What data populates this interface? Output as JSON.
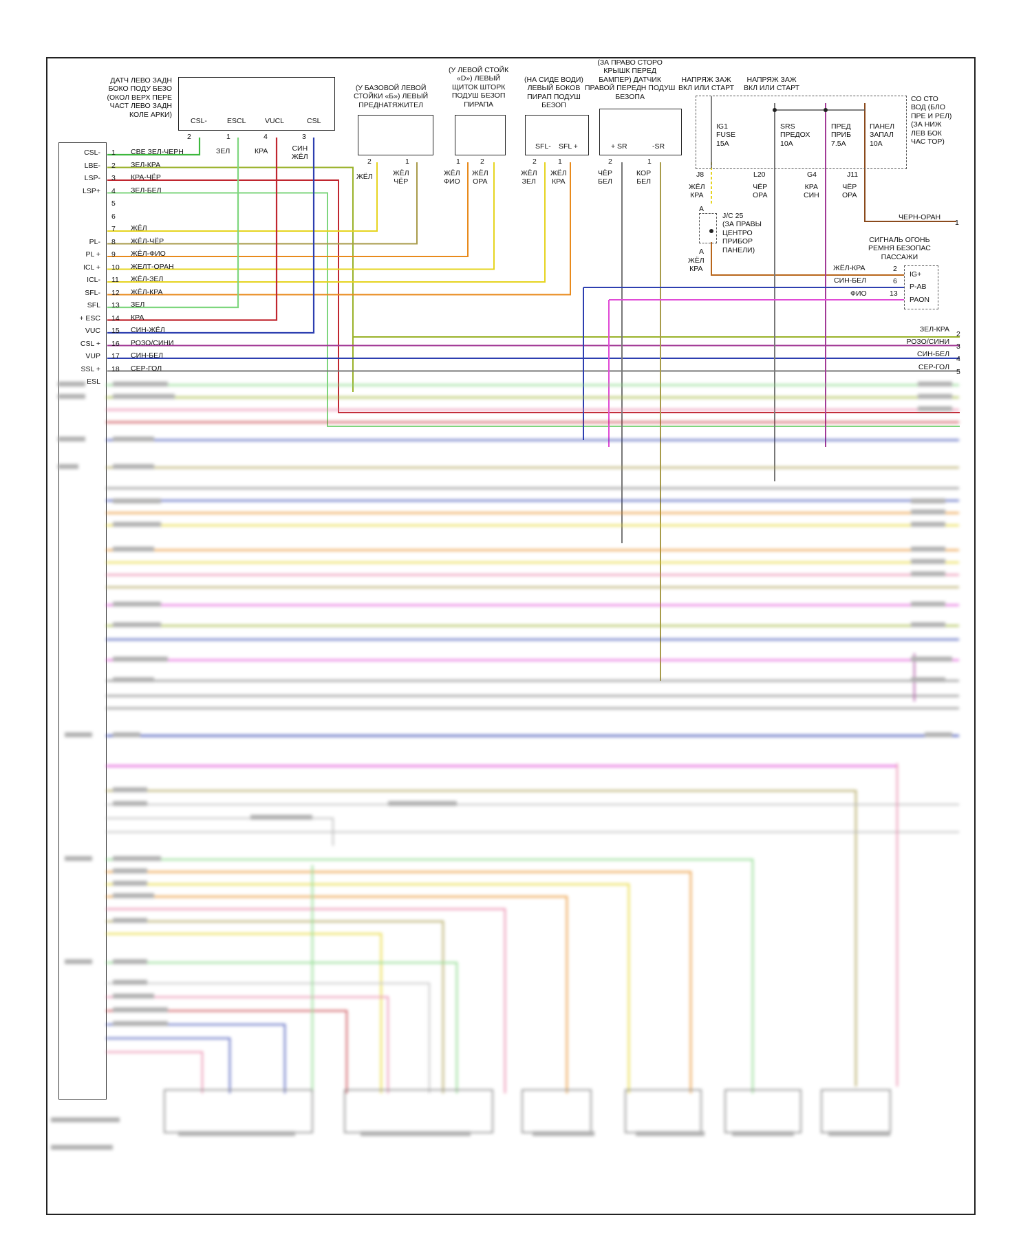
{
  "colors": {
    "green": "#3db83d",
    "yellowgreen": "#9ab22a",
    "red": "#c0262f",
    "blue": "#2d3fb0",
    "yellow": "#e6d41f",
    "orange": "#e88a1c",
    "darkorange": "#b8651a",
    "magenta": "#e04bd6",
    "olive": "#a89b4a",
    "gray": "#777777",
    "brown": "#8a4a1c",
    "purple": "#a23a96",
    "pink": "#e87aa0",
    "lightgreen": "#7ed67e"
  },
  "modules": {
    "left_sensor_title": "ДАТЧ ЛЕВО ЗАДН\nБОКО ПОДУ БЕЗО\n(ОКОЛ ВЕРХ ПЕРЕ\nЧАСТ ЛЕВО ЗАДН\nКОЛЕ АРКИ)",
    "left_sensor_pins": [
      "CSL-",
      "ESCL",
      "VUCL",
      "CSL"
    ],
    "left_sensor_pin_nums": [
      "2",
      "1",
      "4",
      "3"
    ],
    "left_sensor_wire_labels": [
      "ЗЕЛ",
      "КРА",
      "СИН\nЖЁЛ"
    ],
    "pretensioner_title": "(У БАЗОВОЙ ЛЕВОЙ\nСТОЙКИ «Б») ЛЕВЫЙ\nПРЕДНАТЯЖИТЕЛ",
    "pretensioner_pins": [
      "2",
      "1"
    ],
    "pretensioner_wires": [
      "ЖЁЛ",
      "ЖЁЛ\nЧЁР"
    ],
    "curtain_title": "(У ЛЕВОЙ СТОЙК\n«D») ЛЕВЫЙ\nЩИТОК ШТОРК\nПОДУШ БЕЗОП\nПИРАПА",
    "curtain_pins": [
      "1",
      "2"
    ],
    "curtain_wires": [
      "ЖЁЛ\nФИО",
      "ЖЁЛ\nОРА"
    ],
    "side_title": "(НА СИДЕ ВОДИ)\nЛЕВЫЙ БОКОВ\nПИРАП ПОДУШ\nБЕЗОП",
    "side_pins_names": [
      "SFL-",
      "SFL +"
    ],
    "side_pins": [
      "2",
      "1"
    ],
    "side_wires": [
      "ЖЁЛ\nЗЕЛ",
      "ЖЁЛ\nКРА"
    ],
    "front_title": "(ЗА ПРАВО СТОРО\nКРЫШК ПЕРЕД\nБАМПЕР) ДАТЧИК\nПРАВОЙ ПЕРЕДН ПОДУШ\nБЕЗОПА",
    "front_pins_names": [
      "+ SR",
      "-SR"
    ],
    "front_pins": [
      "2",
      "1"
    ],
    "front_wires": [
      "ЧЁР\nБЕЛ",
      "КОР\nБЕЛ"
    ],
    "power1": "НАПРЯЖ ЗАЖ\nВКЛ ИЛИ СТАРТ",
    "power2": "НАПРЯЖ ЗАЖ\nВКЛ ИЛИ СТАРТ",
    "fusebox_title": "СО СТО\nВОД (БЛО\nПРЕ И РЕЛ)\n(ЗА НИЖ\nЛЕВ БОК\nЧАС ТОР)",
    "fuses": [
      "IG1\nFUSE\n15A",
      "SRS\nПРЕДОХ\n10A",
      "ПРЕД\nПРИБ\n7.5A",
      "ПАНЕЛ\nЗАПАЛ\n10A"
    ],
    "fuse_pins": [
      "J8",
      "L20",
      "G4",
      "J11"
    ],
    "fuse_wires": [
      "ЖЁЛ\nКРА",
      "ЧЁР\nОРА",
      "КРА\nСИН",
      "ЧЁР\nОРА"
    ],
    "jc": "J/C 25\n(ЗА ПРАВЫ\nЦЕНТРО\nПРИБОР\nПАНЕЛИ)",
    "jc_wire": "ЖЁЛ\nКРА",
    "jc_a": "A",
    "brown_wire": "ЧЕРН-ОРАН",
    "brown_num": "1",
    "belt_title": "СИГНАЛЬ ОГОНЬ\nРЕМНЯ БЕЗОПАС\nПАССАЖИ",
    "belt_pins": [
      "IG+",
      "P-AB",
      "PAON"
    ],
    "belt_nums": [
      "2",
      "6",
      "13"
    ],
    "belt_wires": [
      "ЖЁЛ-КРА",
      "СИН-БЕЛ",
      "ФИО"
    ]
  },
  "ecu_rows": [
    {
      "pin": "CSL-",
      "num": "1",
      "wire": "СВЕ ЗЕЛ-ЧЕРН"
    },
    {
      "pin": "LBE-",
      "num": "2",
      "wire": "ЗЕЛ-КРА"
    },
    {
      "pin": "LSP-",
      "num": "3",
      "wire": "КРА-ЧЁР"
    },
    {
      "pin": "LSP+",
      "num": "4",
      "wire": "ЗЕЛ-БЕЛ"
    },
    {
      "pin": "",
      "num": "5",
      "wire": ""
    },
    {
      "pin": "",
      "num": "6",
      "wire": ""
    },
    {
      "pin": "",
      "num": "7",
      "wire": "ЖЁЛ"
    },
    {
      "pin": "PL-",
      "num": "8",
      "wire": "ЖЁЛ-ЧЁР"
    },
    {
      "pin": "PL +",
      "num": "9",
      "wire": "ЖЁЛ-ФИО"
    },
    {
      "pin": "ICL +",
      "num": "10",
      "wire": "ЖЕЛТ-ОРАН"
    },
    {
      "pin": "ICL-",
      "num": "11",
      "wire": "ЖЁЛ-ЗЕЛ"
    },
    {
      "pin": "SFL-",
      "num": "12",
      "wire": "ЖЁЛ-КРА"
    },
    {
      "pin": "SFL",
      "num": "13",
      "wire": "ЗЕЛ"
    },
    {
      "pin": "+ ESC",
      "num": "14",
      "wire": "КРА"
    },
    {
      "pin": "VUC",
      "num": "15",
      "wire": "СИН-ЖЁЛ"
    },
    {
      "pin": "CSL +",
      "num": "16",
      "wire": "РОЗО/СИНИ"
    },
    {
      "pin": "VUP",
      "num": "17",
      "wire": "СИН-БЕЛ"
    },
    {
      "pin": "SSL +",
      "num": "18",
      "wire": "СЕР-ГОЛ"
    },
    {
      "pin": "ESL",
      "num": "",
      "wire": ""
    }
  ],
  "right_outputs": [
    {
      "wire": "ЗЕЛ-КРА",
      "num": "2"
    },
    {
      "wire": "РОЗО/СИНИ",
      "num": "3"
    },
    {
      "wire": "СИН-БЕЛ",
      "num": "4"
    },
    {
      "wire": "СЕР-ГОЛ",
      "num": "5"
    }
  ]
}
